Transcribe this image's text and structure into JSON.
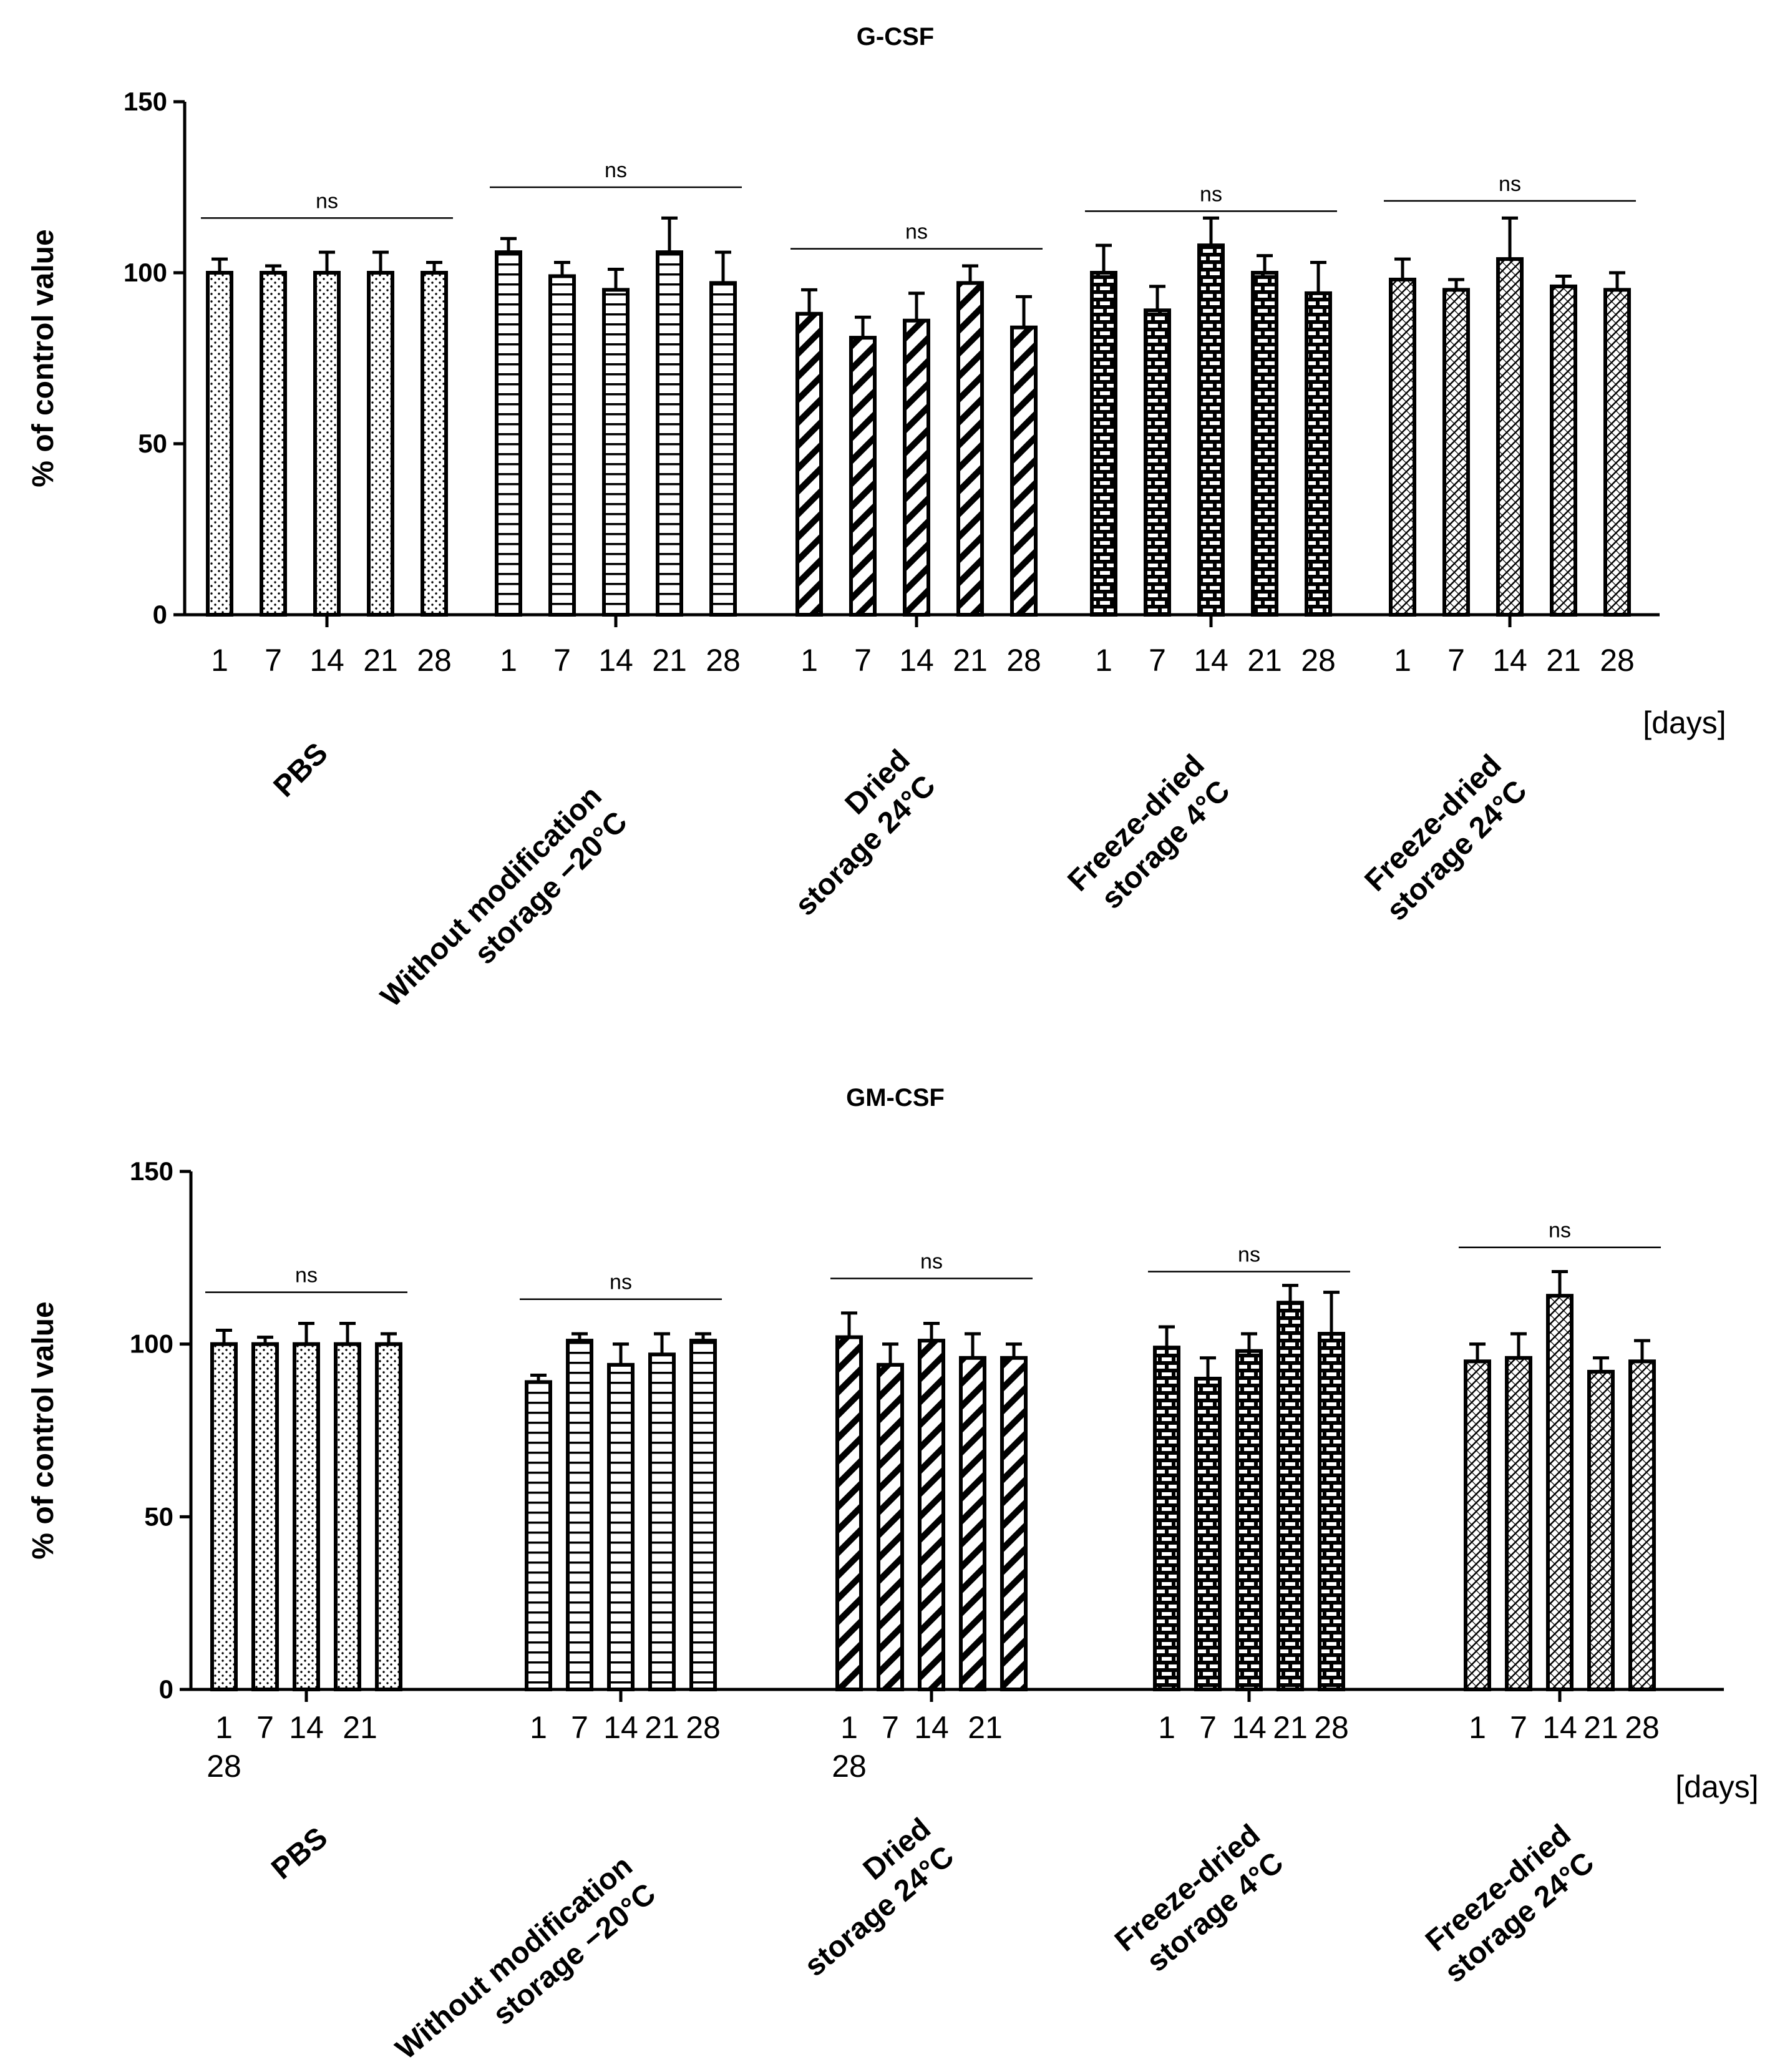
{
  "chart_data": [
    {
      "type": "bar",
      "title": "G-CSF",
      "ylabel": "% of control value",
      "ylim": [
        0,
        150
      ],
      "yticks": [
        "0",
        "50",
        "100",
        "150"
      ],
      "x_unit": "[days]",
      "groups": [
        {
          "label_lines": [
            "PBS"
          ],
          "pattern": "dots",
          "categories": [
            "1",
            "7",
            "14",
            "21",
            "28"
          ],
          "values": [
            100,
            100,
            100,
            100,
            100
          ],
          "errors": [
            4,
            2,
            6,
            6,
            3
          ],
          "significance": "ns",
          "sig_level": 116
        },
        {
          "label_lines": [
            "Without modification",
            "storage −20°C"
          ],
          "pattern": "hlines",
          "categories": [
            "1",
            "7",
            "14",
            "21",
            "28"
          ],
          "values": [
            106,
            99,
            95,
            106,
            97
          ],
          "errors": [
            4,
            4,
            6,
            10,
            9
          ],
          "significance": "ns",
          "sig_level": 125
        },
        {
          "label_lines": [
            "Dried",
            "storage 24°C"
          ],
          "pattern": "diagonal",
          "categories": [
            "1",
            "7",
            "14",
            "21",
            "28"
          ],
          "values": [
            88,
            81,
            86,
            97,
            84
          ],
          "errors": [
            7,
            6,
            8,
            5,
            9
          ],
          "significance": "ns",
          "sig_level": 107
        },
        {
          "label_lines": [
            "Freeze-dried",
            "storage 4°C"
          ],
          "pattern": "brick",
          "categories": [
            "1",
            "7",
            "14",
            "21",
            "28"
          ],
          "values": [
            100,
            89,
            108,
            100,
            94
          ],
          "errors": [
            8,
            7,
            8,
            5,
            9
          ],
          "significance": "ns",
          "sig_level": 118
        },
        {
          "label_lines": [
            "Freeze-dried",
            "storage 24°C"
          ],
          "pattern": "cross",
          "categories": [
            "1",
            "7",
            "14",
            "21",
            "28"
          ],
          "values": [
            98,
            95,
            104,
            96,
            95
          ],
          "errors": [
            6,
            3,
            12,
            3,
            5
          ],
          "significance": "ns",
          "sig_level": 121
        }
      ]
    },
    {
      "type": "bar",
      "title": "GM-CSF",
      "ylabel": "% of control value",
      "ylim": [
        0,
        150
      ],
      "yticks": [
        "0",
        "50",
        "100",
        "150"
      ],
      "x_unit": "[days]",
      "groups": [
        {
          "label_lines": [
            "PBS"
          ],
          "pattern": "dots",
          "categories": [
            "1",
            "7",
            "14",
            "21",
            "28"
          ],
          "values": [
            100,
            100,
            100,
            100,
            100
          ],
          "errors": [
            4,
            2,
            6,
            6,
            3
          ],
          "significance": "ns",
          "sig_level": 115
        },
        {
          "label_lines": [
            "Without modification",
            "storage −20°C"
          ],
          "pattern": "hlines",
          "categories": [
            "1",
            "7",
            "14",
            "21",
            "28"
          ],
          "values": [
            89,
            101,
            94,
            97,
            101
          ],
          "errors": [
            2,
            2,
            6,
            6,
            2
          ],
          "significance": "ns",
          "sig_level": 113
        },
        {
          "label_lines": [
            "Dried",
            "storage 24°C"
          ],
          "pattern": "diagonal",
          "categories": [
            "1",
            "7",
            "14",
            "21",
            "28"
          ],
          "values": [
            102,
            94,
            101,
            96,
            96
          ],
          "errors": [
            7,
            6,
            5,
            7,
            4
          ],
          "significance": "ns",
          "sig_level": 119
        },
        {
          "label_lines": [
            "Freeze-dried",
            "storage 4°C"
          ],
          "pattern": "brick",
          "categories": [
            "1",
            "7",
            "14",
            "21",
            "28"
          ],
          "values": [
            99,
            90,
            98,
            112,
            103
          ],
          "errors": [
            6,
            6,
            5,
            5,
            12
          ],
          "significance": "ns",
          "sig_level": 121
        },
        {
          "label_lines": [
            "Freeze-dried",
            "storage 24°C"
          ],
          "pattern": "cross",
          "categories": [
            "1",
            "7",
            "14",
            "21",
            "28"
          ],
          "values": [
            95,
            96,
            114,
            92,
            95
          ],
          "errors": [
            5,
            7,
            7,
            4,
            6
          ],
          "significance": "ns",
          "sig_level": 128
        }
      ]
    }
  ]
}
